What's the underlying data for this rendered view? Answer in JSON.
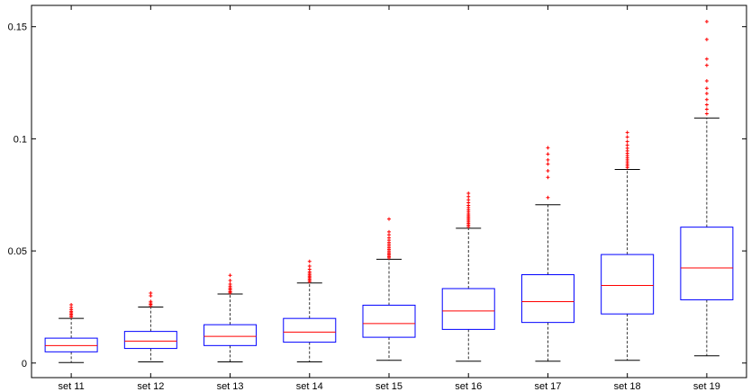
{
  "chart_data": {
    "type": "boxplot",
    "categories": [
      "set 11",
      "set 12",
      "set 13",
      "set 14",
      "set 15",
      "set 16",
      "set 17",
      "set 18",
      "set 19"
    ],
    "y_ticks": [
      0,
      0.05,
      0.1,
      0.15
    ],
    "y_tick_labels": [
      "0",
      "0.05",
      "0.1",
      "0.15"
    ],
    "ylim": [
      -0.0065,
      0.1595
    ],
    "grid": false,
    "colors": {
      "box": "#0000ff",
      "median": "#ff0000",
      "whisker": "#000000",
      "outlier": "#ff0000"
    },
    "boxes": [
      {
        "category": "set 11",
        "whisker_low": 0.0002,
        "q1": 0.005,
        "median": 0.0078,
        "q3": 0.0111,
        "whisker_high": 0.0199,
        "outliers": [
          0.0206,
          0.0212,
          0.0218,
          0.0224,
          0.023,
          0.0238,
          0.0248,
          0.026
        ]
      },
      {
        "category": "set 12",
        "whisker_low": 0.0005,
        "q1": 0.0065,
        "median": 0.0098,
        "q3": 0.0141,
        "whisker_high": 0.025,
        "outliers": [
          0.0256,
          0.0262,
          0.0268,
          0.0275,
          0.03,
          0.0312
        ]
      },
      {
        "category": "set 13",
        "whisker_low": 0.0005,
        "q1": 0.0078,
        "median": 0.0119,
        "q3": 0.0171,
        "whisker_high": 0.0308,
        "outliers": [
          0.0313,
          0.0318,
          0.0324,
          0.033,
          0.0336,
          0.0343,
          0.0352,
          0.0368,
          0.0391
        ]
      },
      {
        "category": "set 14",
        "whisker_low": 0.0005,
        "q1": 0.0093,
        "median": 0.0138,
        "q3": 0.0199,
        "whisker_high": 0.0357,
        "outliers": [
          0.0363,
          0.0369,
          0.0375,
          0.0381,
          0.0387,
          0.0393,
          0.04,
          0.0407,
          0.0418,
          0.0432,
          0.0453
        ]
      },
      {
        "category": "set 15",
        "whisker_low": 0.0012,
        "q1": 0.0115,
        "median": 0.0176,
        "q3": 0.0258,
        "whisker_high": 0.0463,
        "outliers": [
          0.0469,
          0.0475,
          0.0481,
          0.0487,
          0.0493,
          0.05,
          0.0507,
          0.0514,
          0.0522,
          0.053,
          0.0538,
          0.0548,
          0.0558,
          0.0572,
          0.0585,
          0.0642
        ]
      },
      {
        "category": "set 16",
        "whisker_low": 0.0008,
        "q1": 0.015,
        "median": 0.0232,
        "q3": 0.0332,
        "whisker_high": 0.0601,
        "outliers": [
          0.0608,
          0.0615,
          0.0622,
          0.0629,
          0.0636,
          0.0643,
          0.065,
          0.0657,
          0.0665,
          0.0674,
          0.0683,
          0.0693,
          0.0703,
          0.0715,
          0.0728,
          0.0742,
          0.0757
        ]
      },
      {
        "category": "set 17",
        "whisker_low": 0.0008,
        "q1": 0.0181,
        "median": 0.0274,
        "q3": 0.0394,
        "whisker_high": 0.0706,
        "outliers": [
          0.0738,
          0.0828,
          0.0857,
          0.0888,
          0.0906,
          0.0932,
          0.096
        ]
      },
      {
        "category": "set 18",
        "whisker_low": 0.0012,
        "q1": 0.0219,
        "median": 0.0346,
        "q3": 0.0484,
        "whisker_high": 0.0863,
        "outliers": [
          0.0872,
          0.088,
          0.0888,
          0.0897,
          0.0906,
          0.0915,
          0.0925,
          0.0935,
          0.0946,
          0.0958,
          0.0972,
          0.0988,
          0.1008,
          0.1028
        ]
      },
      {
        "category": "set 19",
        "whisker_low": 0.0032,
        "q1": 0.0282,
        "median": 0.0424,
        "q3": 0.0606,
        "whisker_high": 0.1093,
        "outliers": [
          0.1112,
          0.1132,
          0.1152,
          0.1175,
          0.1202,
          0.1225,
          0.1258,
          0.1328,
          0.1356,
          0.1443,
          0.1523
        ]
      }
    ]
  }
}
